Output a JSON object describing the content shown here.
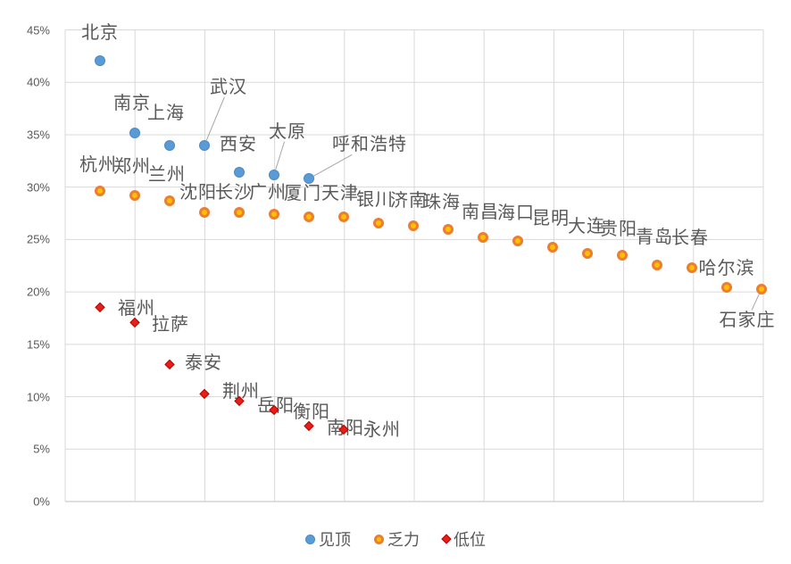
{
  "chart_data": {
    "type": "scatter",
    "title": "",
    "xlabel": "",
    "ylabel": "",
    "grid": true,
    "legend_position": "bottom",
    "y_axis": {
      "min": 0,
      "max": 45,
      "step": 5,
      "unit": "%",
      "tick_labels": [
        "0%",
        "5%",
        "10%",
        "15%",
        "20%",
        "25%",
        "30%",
        "35%",
        "40%",
        "45%"
      ]
    },
    "x_axis": {
      "tick_labels_visible": false,
      "divisions": 10
    },
    "colors": {
      "grid": "#D9D9D9",
      "axis": "#BFBFBF",
      "text": "#595959",
      "leader": "#A6A6A6"
    },
    "series": [
      {
        "name": "见顶",
        "marker": "circle",
        "fill": "#5B9BD5",
        "stroke": "#4A89C8",
        "points": [
          {
            "city": "北京",
            "value": 42.1,
            "dx": 0,
            "dy": -31
          },
          {
            "city": "南京",
            "value": 35.2,
            "dx": -3,
            "dy": -33
          },
          {
            "city": "上海",
            "value": 34.0,
            "dx": -4,
            "dy": -36
          },
          {
            "city": "武汉",
            "value": 34.0,
            "dx": 27,
            "dy": -65,
            "leader": true
          },
          {
            "city": "西安",
            "value": 31.4,
            "dx": -1,
            "dy": -31
          },
          {
            "city": "太原",
            "value": 31.2,
            "dx": 15,
            "dy": -48,
            "leader": true
          },
          {
            "city": "呼和浩特",
            "value": 30.8,
            "dx": 68,
            "dy": -38,
            "leader": true
          }
        ]
      },
      {
        "name": "乏力",
        "marker": "circle",
        "fill": "#FFC000",
        "stroke": "#ED7D31",
        "points": [
          {
            "city": "杭州",
            "value": 29.6,
            "dx": -2,
            "dy": -29
          },
          {
            "city": "郑州",
            "value": 29.2,
            "dx": -3,
            "dy": -32
          },
          {
            "city": "兰州",
            "value": 28.7,
            "dx": -3,
            "dy": -29
          },
          {
            "city": "沈阳",
            "value": 27.6,
            "dx": -7,
            "dy": -22
          },
          {
            "city": "长沙",
            "value": 27.6,
            "dx": -6,
            "dy": -22
          },
          {
            "city": "广州",
            "value": 27.4,
            "dx": -7,
            "dy": -24
          },
          {
            "city": "厦门",
            "value": 27.2,
            "dx": -7,
            "dy": -26
          },
          {
            "city": "天津",
            "value": 27.2,
            "dx": -4,
            "dy": -26
          },
          {
            "city": "银川",
            "value": 26.6,
            "dx": -4,
            "dy": -26
          },
          {
            "city": "济南",
            "value": 26.3,
            "dx": -5,
            "dy": -28
          },
          {
            "city": "珠海",
            "value": 26.0,
            "dx": -7,
            "dy": -30
          },
          {
            "city": "南昌",
            "value": 25.2,
            "dx": -3,
            "dy": -28
          },
          {
            "city": "海口",
            "value": 24.9,
            "dx": -2,
            "dy": -31
          },
          {
            "city": "昆明",
            "value": 24.3,
            "dx": -2,
            "dy": -32
          },
          {
            "city": "大连",
            "value": 23.7,
            "dx": -1,
            "dy": -30
          },
          {
            "city": "贵阳",
            "value": 23.5,
            "dx": -4,
            "dy": -29
          },
          {
            "city": "青岛",
            "value": 22.6,
            "dx": -3,
            "dy": -31
          },
          {
            "city": "长春",
            "value": 22.3,
            "dx": -2,
            "dy": -33
          },
          {
            "city": "哈尔滨",
            "value": 20.4,
            "dx": 0,
            "dy": -21
          },
          {
            "city": "石家庄",
            "value": 20.3,
            "dx": -16,
            "dy": 35,
            "leader": true
          }
        ]
      },
      {
        "name": "低位",
        "marker": "diamond",
        "fill": "#E32119",
        "stroke": "#C00000",
        "points": [
          {
            "city": "福州",
            "value": 18.6,
            "dx": 41,
            "dy": 2
          },
          {
            "city": "拉萨",
            "value": 17.1,
            "dx": 40,
            "dy": 3
          },
          {
            "city": "泰安",
            "value": 13.1,
            "dx": 38,
            "dy": -1
          },
          {
            "city": "荆州",
            "value": 10.3,
            "dx": 41,
            "dy": -2
          },
          {
            "city": "岳阳",
            "value": 9.6,
            "dx": 41,
            "dy": 6
          },
          {
            "city": "衡阳",
            "value": 8.8,
            "dx": 42,
            "dy": 3
          },
          {
            "city": "南阳",
            "value": 7.2,
            "dx": 41,
            "dy": 3
          },
          {
            "city": "永州",
            "value": 6.9,
            "dx": 43,
            "dy": 1
          }
        ]
      }
    ]
  }
}
